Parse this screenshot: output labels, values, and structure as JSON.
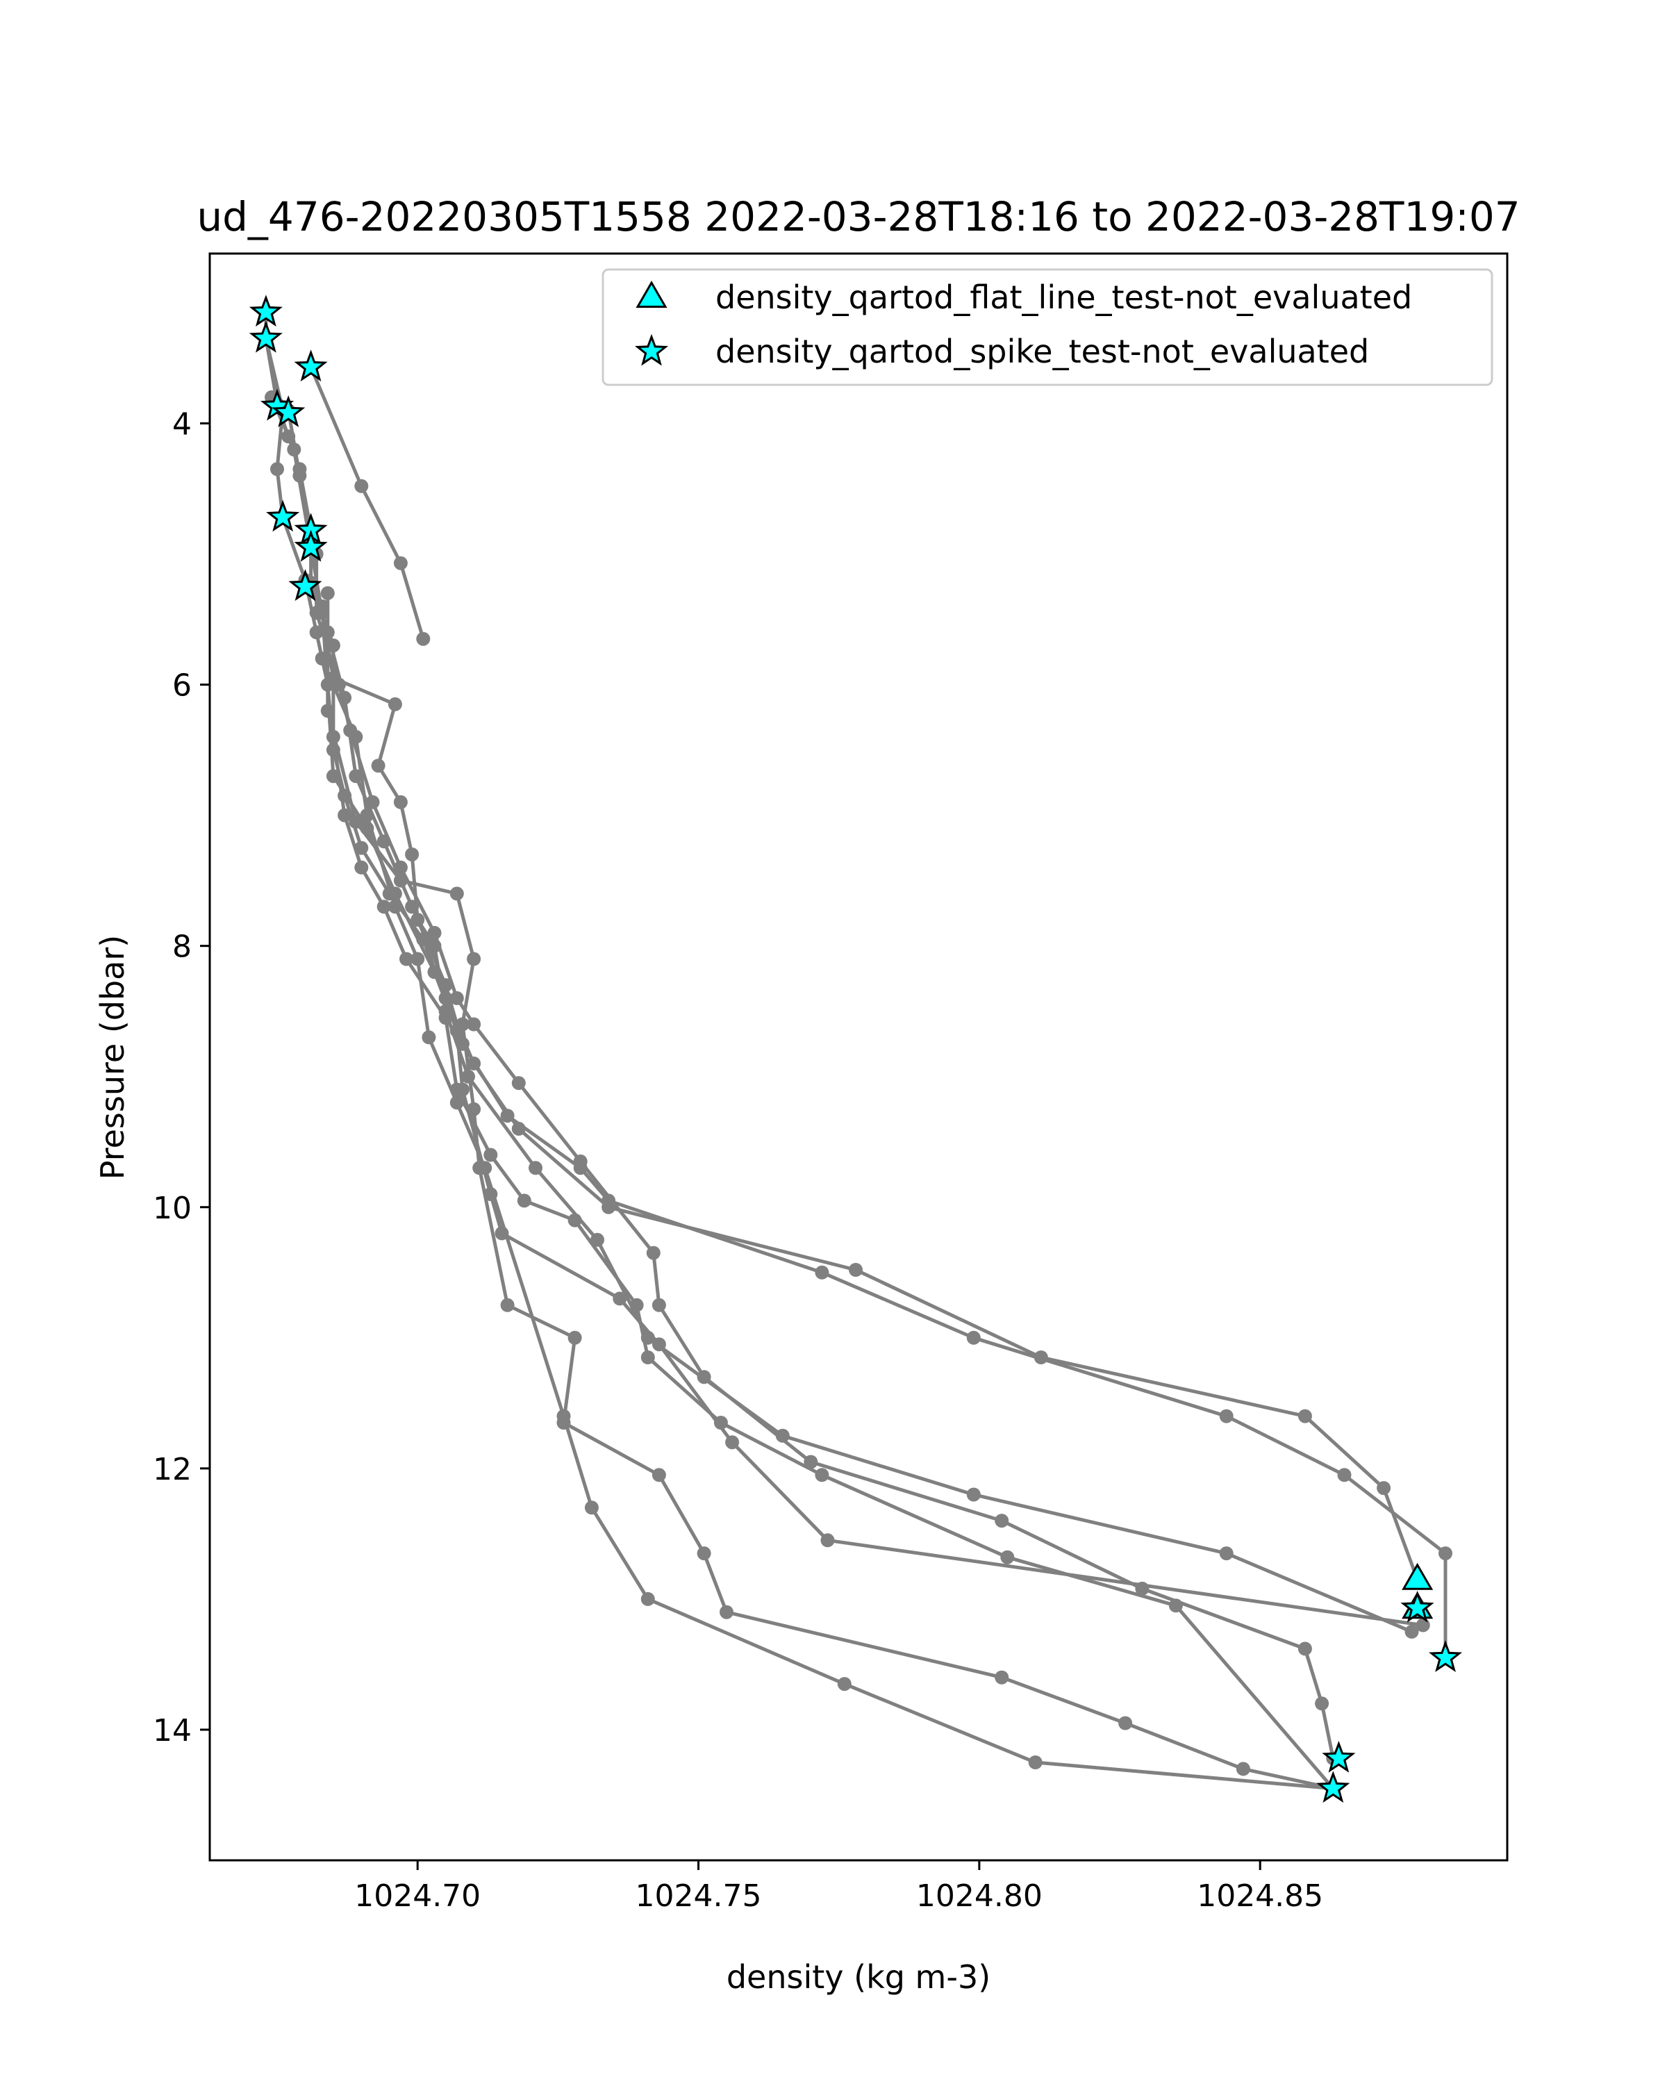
{
  "chart_data": {
    "type": "scatter",
    "title": "ud_476-20220305T1558 2022-03-28T18:16 to 2022-03-28T19:07",
    "xlabel": "density (kg m-3)",
    "ylabel": "Pressure (dbar)",
    "xlim": [
      1024.663,
      1024.894
    ],
    "ylim": [
      15.0,
      2.7
    ],
    "y_inverted": true,
    "grid": false,
    "legend_position": "top-right",
    "x_ticks": [
      {
        "value": 1024.7,
        "label": "1024.70"
      },
      {
        "value": 1024.75,
        "label": "1024.75"
      },
      {
        "value": 1024.8,
        "label": "1024.80"
      },
      {
        "value": 1024.85,
        "label": "1024.85"
      }
    ],
    "y_ticks": [
      {
        "value": 4,
        "label": "4"
      },
      {
        "value": 6,
        "label": "6"
      },
      {
        "value": 8,
        "label": "8"
      },
      {
        "value": 10,
        "label": "10"
      },
      {
        "value": 12,
        "label": "12"
      },
      {
        "value": 14,
        "label": "14"
      }
    ],
    "colors": {
      "profile": "#808080",
      "flag_fill": "#00ffff",
      "flag_edge": "#000000",
      "axes": "#000000",
      "legend_frame": "#cccccc"
    },
    "series": [
      {
        "kind": "profile-line",
        "points": [
          [
            1024.701,
            5.65
          ],
          [
            1024.697,
            5.07
          ],
          [
            1024.69,
            4.48
          ],
          [
            1024.681,
            3.57
          ]
        ]
      },
      {
        "kind": "profile-line",
        "points": [
          [
            1024.673,
            3.15
          ],
          [
            1024.673,
            3.35
          ],
          [
            1024.675,
            3.85
          ],
          [
            1024.677,
            4.1
          ],
          [
            1024.679,
            4.35
          ],
          [
            1024.681,
            4.82
          ],
          [
            1024.681,
            5.25
          ],
          [
            1024.684,
            5.6
          ],
          [
            1024.687,
            6.1
          ],
          [
            1024.689,
            6.7
          ],
          [
            1024.694,
            7.2
          ],
          [
            1024.699,
            7.7
          ],
          [
            1024.705,
            8.3
          ],
          [
            1024.708,
            8.75
          ],
          [
            1024.716,
            9.3
          ],
          [
            1024.729,
            9.7
          ],
          [
            1024.734,
            9.95
          ],
          [
            1024.772,
            10.5
          ],
          [
            1024.799,
            11.0
          ],
          [
            1024.844,
            11.6
          ],
          [
            1024.865,
            12.05
          ],
          [
            1024.883,
            12.65
          ],
          [
            1024.883,
            13.45
          ]
        ]
      },
      {
        "kind": "profile-line",
        "points": [
          [
            1024.673,
            3.35
          ],
          [
            1024.676,
            3.9
          ],
          [
            1024.675,
            4.35
          ],
          [
            1024.676,
            4.72
          ],
          [
            1024.68,
            5.2
          ],
          [
            1024.682,
            5.6
          ],
          [
            1024.684,
            6.0
          ],
          [
            1024.685,
            6.5
          ],
          [
            1024.687,
            6.85
          ],
          [
            1024.69,
            7.25
          ],
          [
            1024.695,
            7.6
          ],
          [
            1024.701,
            7.95
          ],
          [
            1024.705,
            8.4
          ],
          [
            1024.71,
            8.9
          ],
          [
            1024.718,
            9.4
          ],
          [
            1024.734,
            10.0
          ],
          [
            1024.778,
            10.48
          ],
          [
            1024.811,
            11.15
          ],
          [
            1024.858,
            11.6
          ],
          [
            1024.872,
            12.15
          ],
          [
            1024.878,
            12.85
          ]
        ]
      },
      {
        "kind": "profile-line",
        "points": [
          [
            1024.674,
            3.8
          ],
          [
            1024.678,
            4.2
          ],
          [
            1024.681,
            4.95
          ],
          [
            1024.683,
            5.45
          ],
          [
            1024.685,
            5.95
          ],
          [
            1024.696,
            6.15
          ],
          [
            1024.693,
            6.62
          ],
          [
            1024.697,
            6.9
          ],
          [
            1024.699,
            7.3
          ],
          [
            1024.7,
            7.8
          ],
          [
            1024.703,
            8.0
          ],
          [
            1024.705,
            8.5
          ],
          [
            1024.709,
            9.0
          ],
          [
            1024.721,
            9.7
          ],
          [
            1024.732,
            10.25
          ],
          [
            1024.741,
            11.0
          ],
          [
            1024.765,
            11.75
          ],
          [
            1024.799,
            12.2
          ],
          [
            1024.844,
            12.65
          ],
          [
            1024.877,
            13.25
          ]
        ]
      },
      {
        "kind": "profile-line",
        "points": [
          [
            1024.677,
            3.9
          ],
          [
            1024.679,
            4.4
          ],
          [
            1024.682,
            5.0
          ],
          [
            1024.682,
            5.45
          ],
          [
            1024.686,
            6.0
          ],
          [
            1024.688,
            6.35
          ],
          [
            1024.692,
            6.9
          ],
          [
            1024.697,
            7.4
          ],
          [
            1024.703,
            7.9
          ],
          [
            1024.707,
            8.4
          ],
          [
            1024.71,
            8.6
          ],
          [
            1024.718,
            9.05
          ],
          [
            1024.729,
            9.65
          ],
          [
            1024.742,
            10.35
          ],
          [
            1024.743,
            10.75
          ],
          [
            1024.751,
            11.3
          ],
          [
            1024.77,
            11.95
          ],
          [
            1024.804,
            12.4
          ],
          [
            1024.829,
            12.92
          ],
          [
            1024.858,
            13.38
          ],
          [
            1024.861,
            13.8
          ],
          [
            1024.863,
            14.22
          ]
        ]
      },
      {
        "kind": "profile-line",
        "points": [
          [
            1024.681,
            5.22
          ],
          [
            1024.685,
            5.7
          ],
          [
            1024.685,
            6.4
          ],
          [
            1024.687,
            7.0
          ],
          [
            1024.69,
            7.4
          ],
          [
            1024.694,
            7.7
          ],
          [
            1024.698,
            8.1
          ],
          [
            1024.705,
            8.55
          ],
          [
            1024.707,
            9.1
          ],
          [
            1024.713,
            9.6
          ],
          [
            1024.719,
            9.95
          ],
          [
            1024.728,
            10.1
          ],
          [
            1024.739,
            10.75
          ],
          [
            1024.741,
            11.15
          ],
          [
            1024.754,
            11.65
          ],
          [
            1024.772,
            12.05
          ],
          [
            1024.805,
            12.68
          ],
          [
            1024.835,
            13.05
          ],
          [
            1024.863,
            14.45
          ]
        ]
      },
      {
        "kind": "profile-line",
        "points": [
          [
            1024.683,
            5.4
          ],
          [
            1024.685,
            6.7
          ],
          [
            1024.691,
            7.1
          ],
          [
            1024.696,
            7.6
          ],
          [
            1024.703,
            8.2
          ],
          [
            1024.707,
            8.65
          ],
          [
            1024.708,
            9.1
          ],
          [
            1024.713,
            9.9
          ],
          [
            1024.715,
            10.2
          ],
          [
            1024.736,
            10.7
          ],
          [
            1024.743,
            11.05
          ],
          [
            1024.756,
            11.8
          ],
          [
            1024.773,
            12.55
          ],
          [
            1024.879,
            13.2
          ]
        ]
      },
      {
        "kind": "profile-line",
        "points": [
          [
            1024.684,
            5.3
          ],
          [
            1024.684,
            6.2
          ],
          [
            1024.689,
            7.05
          ],
          [
            1024.697,
            7.5
          ],
          [
            1024.707,
            7.6
          ],
          [
            1024.71,
            8.1
          ],
          [
            1024.708,
            8.6
          ],
          [
            1024.71,
            9.25
          ],
          [
            1024.711,
            9.7
          ],
          [
            1024.716,
            10.75
          ],
          [
            1024.728,
            11.0
          ],
          [
            1024.726,
            11.65
          ],
          [
            1024.743,
            12.05
          ],
          [
            1024.751,
            12.65
          ],
          [
            1024.755,
            13.1
          ],
          [
            1024.804,
            13.6
          ],
          [
            1024.826,
            13.95
          ],
          [
            1024.847,
            14.3
          ],
          [
            1024.863,
            14.45
          ]
        ]
      },
      {
        "kind": "profile-line",
        "points": [
          [
            1024.683,
            5.8
          ],
          [
            1024.689,
            6.4
          ],
          [
            1024.691,
            7.0
          ],
          [
            1024.696,
            7.7
          ],
          [
            1024.7,
            8.1
          ],
          [
            1024.702,
            8.7
          ],
          [
            1024.707,
            9.2
          ],
          [
            1024.712,
            9.7
          ],
          [
            1024.726,
            11.6
          ],
          [
            1024.731,
            12.3
          ],
          [
            1024.741,
            13.0
          ],
          [
            1024.776,
            13.65
          ],
          [
            1024.81,
            14.25
          ],
          [
            1024.863,
            14.45
          ]
        ]
      },
      {
        "kind": "flag",
        "name": "density_qartod_flat_line_test-not_evaluated",
        "marker": "triangle",
        "points": [
          [
            1024.878,
            12.85
          ],
          [
            1024.878,
            13.07
          ]
        ]
      },
      {
        "kind": "flag",
        "name": "density_qartod_spike_test-not_evaluated",
        "marker": "star",
        "points": [
          [
            1024.673,
            3.15
          ],
          [
            1024.673,
            3.35
          ],
          [
            1024.681,
            3.57
          ],
          [
            1024.675,
            3.87
          ],
          [
            1024.677,
            3.92
          ],
          [
            1024.676,
            4.72
          ],
          [
            1024.681,
            4.82
          ],
          [
            1024.681,
            4.95
          ],
          [
            1024.68,
            5.25
          ],
          [
            1024.878,
            13.07
          ],
          [
            1024.883,
            13.45
          ],
          [
            1024.864,
            14.22
          ],
          [
            1024.863,
            14.45
          ]
        ]
      }
    ]
  }
}
